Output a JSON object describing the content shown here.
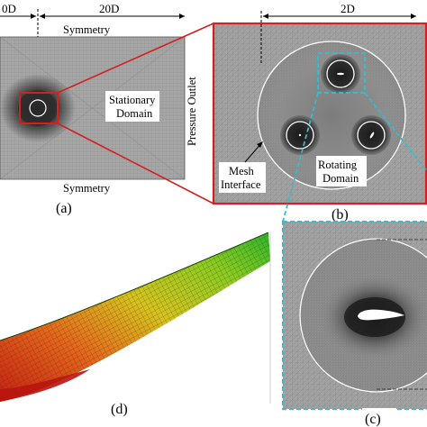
{
  "dims": {
    "left_width": "0D",
    "right_width": "20D",
    "zoom_width": "2D"
  },
  "boundaries": {
    "top": "Symmetry",
    "bottom": "Symmetry",
    "right": "Pressure Outlet"
  },
  "domains": {
    "stationary_line1": "Stationary",
    "stationary_line2": "Domain",
    "rotating_line1": "Rotating",
    "rotating_line2": "Domain"
  },
  "interface": {
    "line1": "Mesh",
    "line2": "Interface"
  },
  "panels": {
    "a": "(a)",
    "b": "(b)",
    "c": "(c)",
    "d": "(d)"
  },
  "colors": {
    "zoom_frame": "#d42020",
    "detail_frame": "#35bcd0",
    "mesh_bg": "#9a9a9a",
    "dense_mesh": "#262626"
  }
}
